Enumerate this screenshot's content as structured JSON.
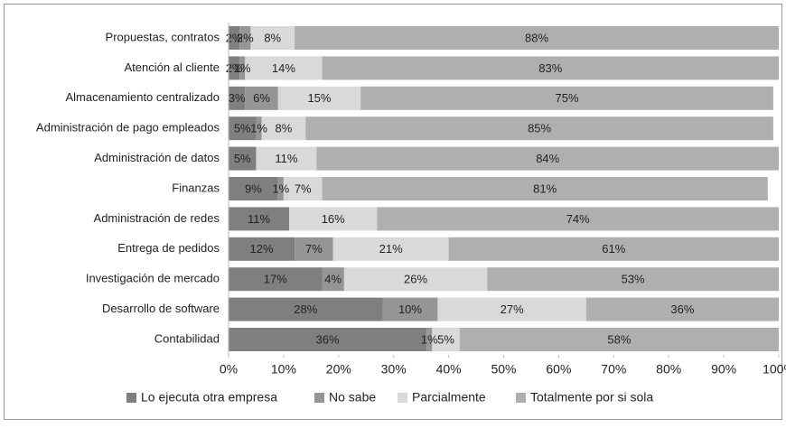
{
  "chart_data": {
    "type": "stacked_bar_horizontal",
    "categories": [
      "Propuestas, contratos",
      "Atención al cliente",
      "Almacenamiento centralizado",
      "Administración de pago empleados",
      "Administración de datos",
      "Finanzas",
      "Administración de redes",
      "Entrega de pedidos",
      "Investigación de mercado",
      "Desarrollo de software",
      "Contabilidad"
    ],
    "series": [
      {
        "name": "Lo ejecuta otra empresa",
        "color": "#7f7f7f",
        "values": [
          2,
          2,
          3,
          5,
          5,
          9,
          11,
          12,
          17,
          28,
          36
        ],
        "value_labels": [
          "2%",
          "2%",
          "3%",
          "5%",
          "5%",
          "9%",
          "11%",
          "12%",
          "17%",
          "28%",
          "36%"
        ]
      },
      {
        "name": "No sabe",
        "color": "#959595",
        "values": [
          2,
          1,
          6,
          1,
          null,
          1,
          null,
          7,
          4,
          10,
          1
        ],
        "value_labels": [
          "2%",
          "1%",
          "6%",
          "1%",
          null,
          "1%",
          null,
          "7%",
          "4%",
          "10%",
          "1%"
        ]
      },
      {
        "name": "Parcialmente",
        "color": "#d9d9d9",
        "values": [
          8,
          14,
          15,
          8,
          11,
          7,
          16,
          21,
          26,
          27,
          5
        ],
        "value_labels": [
          "8%",
          "14%",
          "15%",
          "8%",
          "11%",
          "7%",
          "16%",
          "21%",
          "26%",
          "27%",
          "5%"
        ]
      },
      {
        "name": "Totalmente por si sola",
        "color": "#afafaf",
        "values": [
          88,
          83,
          75,
          85,
          84,
          81,
          74,
          61,
          53,
          36,
          58
        ],
        "value_labels": [
          "88%",
          "83%",
          "75%",
          "85%",
          "84%",
          "81%",
          "74%",
          "61%",
          "53%",
          "36%",
          "58%"
        ]
      }
    ],
    "xlim": [
      0,
      100
    ],
    "xticks": [
      {
        "value": 0,
        "label": "0%"
      },
      {
        "value": 10,
        "label": "10%"
      },
      {
        "value": 20,
        "label": "20%"
      },
      {
        "value": 30,
        "label": "30%"
      },
      {
        "value": 40,
        "label": "40%"
      },
      {
        "value": 50,
        "label": "50%"
      },
      {
        "value": 60,
        "label": "60%"
      },
      {
        "value": 70,
        "label": "70%"
      },
      {
        "value": 80,
        "label": "80%"
      },
      {
        "value": 90,
        "label": "90%"
      },
      {
        "value": 100,
        "label": "100%"
      }
    ],
    "legend": "bottom"
  }
}
